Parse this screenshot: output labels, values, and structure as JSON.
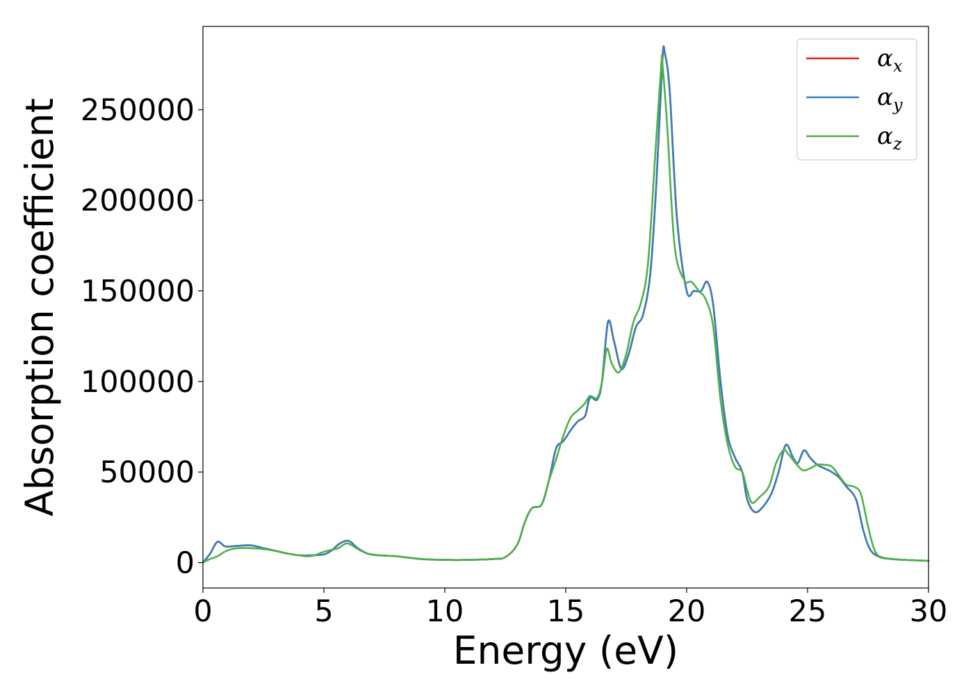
{
  "chart_data": {
    "type": "line",
    "xlabel": "Energy (eV)",
    "ylabel": "Absorption coefficient",
    "xlim": [
      0,
      30
    ],
    "ylim": [
      -14000,
      296000
    ],
    "xticks": [
      0,
      5,
      10,
      15,
      20,
      25,
      30
    ],
    "yticks": [
      0,
      50000,
      100000,
      150000,
      200000,
      250000
    ],
    "grid": false,
    "legend_position": "top-right",
    "series": [
      {
        "name": "α_x",
        "legend_main": "α",
        "legend_sub": "x",
        "color": "#e41a1c",
        "x": [
          0,
          0.3,
          0.6,
          0.9,
          1.2,
          1.5,
          2.0,
          2.5,
          3.0,
          3.5,
          4.0,
          4.5,
          5.0,
          5.3,
          5.6,
          5.9,
          6.1,
          6.4,
          6.8,
          7.3,
          8.0,
          9.0,
          10.0,
          11.0,
          12.0,
          12.5,
          13.0,
          13.3,
          13.6,
          14.0,
          14.3,
          14.6,
          14.9,
          15.2,
          15.5,
          15.8,
          16.0,
          16.3,
          16.5,
          16.75,
          17.0,
          17.3,
          17.6,
          17.9,
          18.2,
          18.5,
          18.75,
          19.0,
          19.1,
          19.3,
          19.6,
          20.0,
          20.3,
          20.6,
          20.85,
          21.1,
          21.4,
          21.7,
          22.0,
          22.3,
          22.5,
          22.8,
          23.1,
          23.5,
          23.8,
          24.1,
          24.4,
          24.6,
          24.85,
          25.1,
          25.4,
          25.7,
          26.0,
          26.3,
          26.6,
          27.0,
          27.3,
          27.6,
          28.0,
          28.5,
          29.0,
          30.0
        ],
        "y": [
          0,
          5000,
          11500,
          9000,
          9000,
          9300,
          9500,
          8000,
          6500,
          5000,
          4000,
          4000,
          4500,
          6500,
          10000,
          12000,
          11500,
          8000,
          5000,
          4000,
          3500,
          2000,
          1500,
          1500,
          2000,
          3000,
          10000,
          22000,
          30000,
          32000,
          45000,
          63000,
          67000,
          73000,
          78000,
          81000,
          91000,
          90000,
          100000,
          133000,
          122000,
          107000,
          115000,
          130000,
          137000,
          160000,
          210000,
          278000,
          281000,
          260000,
          190000,
          150000,
          150000,
          150000,
          155000,
          142000,
          100000,
          70000,
          58000,
          50000,
          35000,
          28000,
          30000,
          38000,
          50000,
          65000,
          58000,
          55000,
          62000,
          58000,
          54000,
          52000,
          50000,
          47000,
          42000,
          35000,
          18000,
          7000,
          3000,
          2000,
          1500,
          1000
        ]
      },
      {
        "name": "α_y",
        "legend_main": "α",
        "legend_sub": "y",
        "color": "#377eb8",
        "x": [
          0,
          0.3,
          0.6,
          0.9,
          1.2,
          1.5,
          2.0,
          2.5,
          3.0,
          3.5,
          4.0,
          4.5,
          5.0,
          5.3,
          5.6,
          5.9,
          6.1,
          6.4,
          6.8,
          7.3,
          8.0,
          9.0,
          10.0,
          11.0,
          12.0,
          12.5,
          13.0,
          13.3,
          13.6,
          14.0,
          14.3,
          14.6,
          14.9,
          15.2,
          15.5,
          15.8,
          16.0,
          16.3,
          16.5,
          16.75,
          17.0,
          17.3,
          17.6,
          17.9,
          18.2,
          18.5,
          18.75,
          19.0,
          19.1,
          19.3,
          19.6,
          20.0,
          20.3,
          20.6,
          20.85,
          21.1,
          21.4,
          21.7,
          22.0,
          22.3,
          22.5,
          22.8,
          23.1,
          23.5,
          23.8,
          24.1,
          24.4,
          24.6,
          24.85,
          25.1,
          25.4,
          25.7,
          26.0,
          26.3,
          26.6,
          27.0,
          27.3,
          27.6,
          28.0,
          28.5,
          29.0,
          30.0
        ],
        "y": [
          0,
          5000,
          11500,
          9000,
          9000,
          9300,
          9500,
          8000,
          6500,
          5000,
          4000,
          4000,
          4500,
          6500,
          10000,
          12000,
          11500,
          8000,
          5000,
          4000,
          3500,
          2000,
          1500,
          1500,
          2000,
          3000,
          10000,
          22000,
          30000,
          32000,
          45000,
          63000,
          67000,
          73000,
          78000,
          81000,
          91000,
          90000,
          100000,
          133000,
          122000,
          107000,
          115000,
          130000,
          137000,
          160000,
          210000,
          278000,
          281000,
          260000,
          190000,
          150000,
          150000,
          150000,
          155000,
          142000,
          100000,
          70000,
          58000,
          50000,
          35000,
          28000,
          30000,
          38000,
          50000,
          65000,
          58000,
          55000,
          62000,
          58000,
          54000,
          52000,
          50000,
          47000,
          42000,
          35000,
          18000,
          7000,
          3000,
          2000,
          1500,
          1000
        ]
      },
      {
        "name": "α_z",
        "legend_main": "α",
        "legend_sub": "z",
        "color": "#4daf4a",
        "x": [
          0,
          0.3,
          0.6,
          0.9,
          1.2,
          1.5,
          2.0,
          2.5,
          3.0,
          3.5,
          4.0,
          4.3,
          4.6,
          5.0,
          5.3,
          5.6,
          5.9,
          6.1,
          6.4,
          6.8,
          7.3,
          8.0,
          9.0,
          10.0,
          11.0,
          12.0,
          12.5,
          13.0,
          13.3,
          13.6,
          14.0,
          14.3,
          14.6,
          14.9,
          15.2,
          15.5,
          15.8,
          16.0,
          16.3,
          16.5,
          16.7,
          16.9,
          17.2,
          17.5,
          17.8,
          18.1,
          18.4,
          18.7,
          18.95,
          19.0,
          19.2,
          19.5,
          19.9,
          20.2,
          20.5,
          20.8,
          21.1,
          21.4,
          21.7,
          22.0,
          22.3,
          22.5,
          22.7,
          23.0,
          23.4,
          23.7,
          24.0,
          24.2,
          24.5,
          24.8,
          25.1,
          25.4,
          25.7,
          26.0,
          26.3,
          26.6,
          26.9,
          27.2,
          27.5,
          27.8,
          28.2,
          29.0,
          30.0
        ],
        "y": [
          0,
          2000,
          3500,
          6000,
          7500,
          8000,
          8000,
          7500,
          6500,
          5000,
          4000,
          3500,
          4000,
          6000,
          7000,
          8000,
          10500,
          10000,
          7500,
          5000,
          4000,
          3500,
          2000,
          1500,
          1500,
          2000,
          3000,
          10000,
          22000,
          30000,
          32000,
          45000,
          57000,
          70000,
          80000,
          84000,
          88000,
          92000,
          91000,
          100000,
          118000,
          110000,
          105000,
          115000,
          133000,
          143000,
          165000,
          225000,
          275000,
          275000,
          240000,
          175000,
          156000,
          155000,
          150000,
          145000,
          130000,
          90000,
          65000,
          53000,
          50000,
          40000,
          33000,
          36000,
          42000,
          55000,
          62000,
          60000,
          55000,
          51000,
          52000,
          54000,
          54000,
          53000,
          48000,
          43000,
          42000,
          38000,
          20000,
          6000,
          2500,
          1500,
          1000
        ]
      }
    ]
  }
}
